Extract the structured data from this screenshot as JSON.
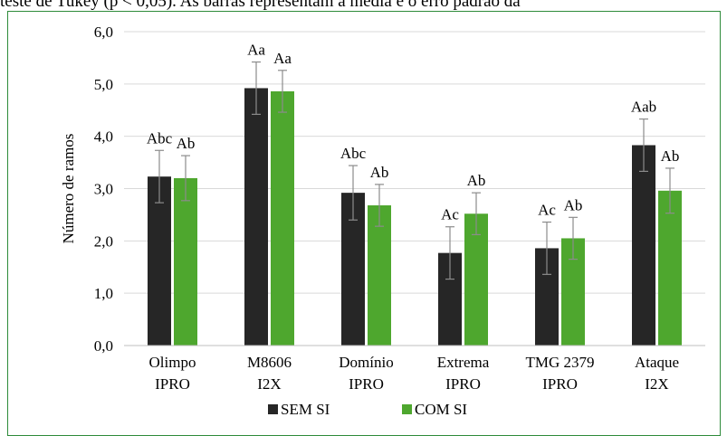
{
  "caption": "teste de Tukey (p < 0,05). As barras representam a média e o erro padrão da",
  "chart_data": {
    "type": "bar",
    "ylabel": "Número de ramos",
    "xlabel": "",
    "ylim": [
      0,
      6
    ],
    "y_ticks": [
      "0,0",
      "1,0",
      "2,0",
      "3,0",
      "4,0",
      "5,0",
      "6,0"
    ],
    "grid": true,
    "legend_position": "bottom",
    "categories": [
      [
        "Olimpo",
        "IPRO"
      ],
      [
        "M8606",
        "I2X"
      ],
      [
        "Domínio",
        "IPRO"
      ],
      [
        "Extrema",
        "IPRO"
      ],
      [
        "TMG 2379",
        "IPRO"
      ],
      [
        "Ataque",
        "I2X"
      ]
    ],
    "series": [
      {
        "name": "SEM SI",
        "color": "#262626",
        "values": [
          3.23,
          4.92,
          2.92,
          1.77,
          1.86,
          3.83
        ],
        "errors": [
          0.5,
          0.5,
          0.52,
          0.5,
          0.5,
          0.5
        ],
        "labels": [
          "Abc",
          "Aa",
          "Abc",
          "Ac",
          "Ac",
          "Aab"
        ]
      },
      {
        "name": "COM SI",
        "color": "#4ea72e",
        "values": [
          3.2,
          4.86,
          2.68,
          2.52,
          2.05,
          2.96
        ],
        "errors": [
          0.43,
          0.4,
          0.4,
          0.4,
          0.4,
          0.43
        ],
        "labels": [
          "Ab",
          "Aa",
          "Ab",
          "Ab",
          "Ab",
          "Ab"
        ]
      }
    ]
  }
}
